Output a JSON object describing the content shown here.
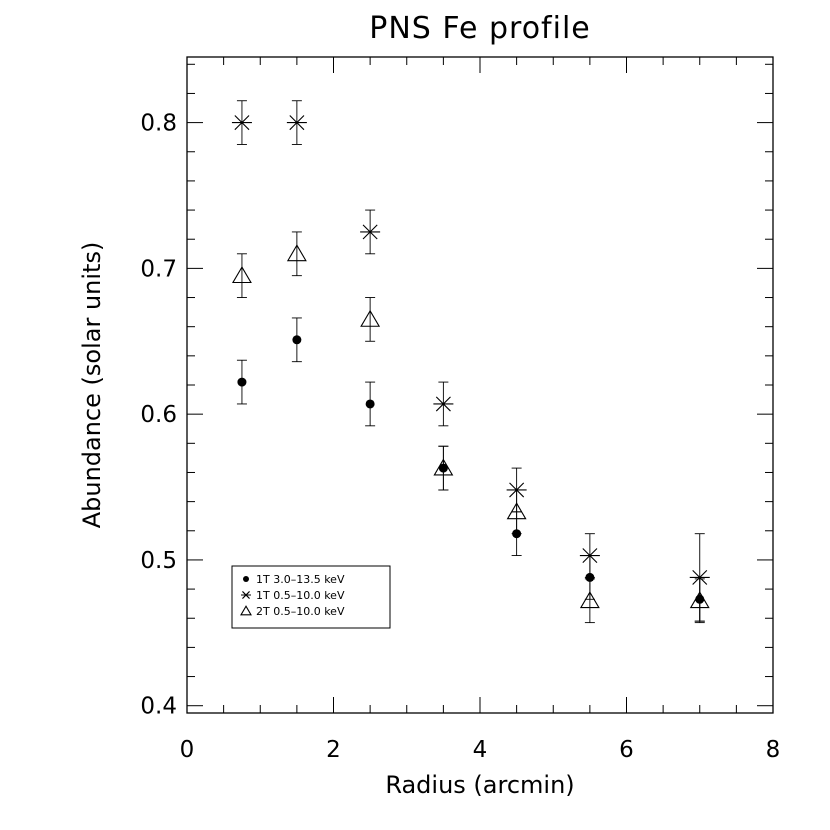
{
  "chart_data": {
    "type": "scatter",
    "title": "PNS Fe profile",
    "xlabel": "Radius (arcmin)",
    "ylabel": "Abundance (solar units)",
    "xlim": [
      0,
      8
    ],
    "ylim": [
      0.395,
      0.845
    ],
    "xticks": [
      0,
      2,
      4,
      6,
      8
    ],
    "xtick_labels": [
      "0",
      "2",
      "4",
      "6",
      "8"
    ],
    "yticks": [
      0.4,
      0.5,
      0.6,
      0.7,
      0.8
    ],
    "ytick_labels": [
      "0.4",
      "0.5",
      "0.6",
      "0.7",
      "0.8"
    ],
    "x_minor_step": 0.5,
    "y_minor_step": 0.02,
    "legend_position": "lower-left",
    "grid": false,
    "series": [
      {
        "name": "1T 3.0–13.5 keV",
        "marker": "dot",
        "points": [
          {
            "x": 0.75,
            "y": 0.622,
            "err": 0.015
          },
          {
            "x": 1.5,
            "y": 0.651,
            "err": 0.015
          },
          {
            "x": 2.5,
            "y": 0.607,
            "err": 0.015
          },
          {
            "x": 3.5,
            "y": 0.563,
            "err": 0.015
          },
          {
            "x": 4.5,
            "y": 0.518,
            "err": 0.015
          },
          {
            "x": 5.5,
            "y": 0.488,
            "err": 0.015
          },
          {
            "x": 7.0,
            "y": 0.473,
            "err": 0.015
          }
        ]
      },
      {
        "name": "1T 0.5–10.0 keV",
        "marker": "asterisk",
        "points": [
          {
            "x": 0.75,
            "y": 0.8,
            "err": 0.015
          },
          {
            "x": 1.5,
            "y": 0.8,
            "err": 0.015
          },
          {
            "x": 2.5,
            "y": 0.725,
            "err": 0.015
          },
          {
            "x": 3.5,
            "y": 0.607,
            "err": 0.015
          },
          {
            "x": 4.5,
            "y": 0.548,
            "err": 0.015
          },
          {
            "x": 5.5,
            "y": 0.503,
            "err": 0.015
          },
          {
            "x": 7.0,
            "y": 0.488,
            "err": 0.03
          }
        ]
      },
      {
        "name": "2T 0.5–10.0 keV",
        "marker": "triangle",
        "points": [
          {
            "x": 0.75,
            "y": 0.695,
            "err": 0.015
          },
          {
            "x": 1.5,
            "y": 0.71,
            "err": 0.015
          },
          {
            "x": 2.5,
            "y": 0.665,
            "err": 0.015
          },
          {
            "x": 3.5,
            "y": 0.563,
            "err": 0.015
          },
          {
            "x": 4.5,
            "y": 0.533,
            "err": 0.015
          },
          {
            "x": 5.5,
            "y": 0.472,
            "err": 0.015
          },
          {
            "x": 7.0,
            "y": 0.472,
            "err": 0.015
          }
        ]
      }
    ]
  }
}
